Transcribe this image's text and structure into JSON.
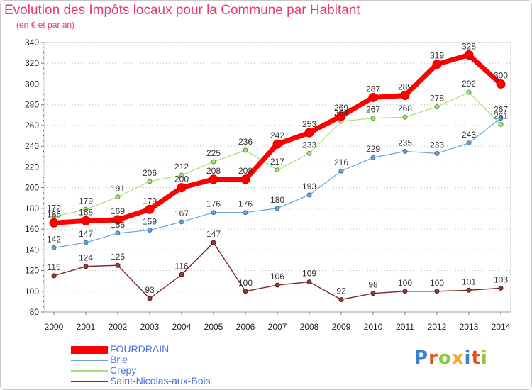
{
  "title": "Evolution des Impôts locaux pour la Commune par Habitant",
  "subtitle": "(en € et par an)",
  "logo_text": "Proxiti",
  "chart_data": {
    "type": "line",
    "title": "Evolution des Impôts locaux pour la Commune par Habitant",
    "subtitle": "(en € et par an)",
    "xlabel": "",
    "ylabel": "",
    "x": [
      "2000",
      "2001",
      "2002",
      "2003",
      "2004",
      "2005",
      "2006",
      "2007",
      "2008",
      "2009",
      "2010",
      "2011",
      "2012",
      "2013",
      "2014"
    ],
    "ylim": [
      80,
      340
    ],
    "yticks": [
      80,
      100,
      120,
      140,
      160,
      180,
      200,
      220,
      240,
      260,
      280,
      300,
      320,
      340
    ],
    "grid": "horizontal dotted",
    "legend_position": "bottom-left",
    "series": [
      {
        "name": "FOURDRAIN",
        "color": "#ff0000",
        "values": [
          166,
          168,
          169,
          179,
          200,
          208,
          208,
          242,
          253,
          269,
          287,
          289,
          319,
          328,
          300
        ]
      },
      {
        "name": "Brie",
        "color": "#6ba3d6",
        "values": [
          142,
          147,
          156,
          159,
          167,
          176,
          176,
          180,
          193,
          216,
          229,
          235,
          233,
          243,
          267
        ]
      },
      {
        "name": "Crépy",
        "color": "#a6e07a",
        "values": [
          172,
          179,
          191,
          206,
          212,
          225,
          236,
          217,
          233,
          264,
          267,
          268,
          278,
          292,
          261
        ]
      },
      {
        "name": "Saint-Nicolas-aux-Bois",
        "color": "#7a2a2a",
        "values": [
          115,
          124,
          125,
          93,
          116,
          147,
          100,
          106,
          109,
          92,
          98,
          100,
          100,
          101,
          103
        ]
      }
    ]
  }
}
